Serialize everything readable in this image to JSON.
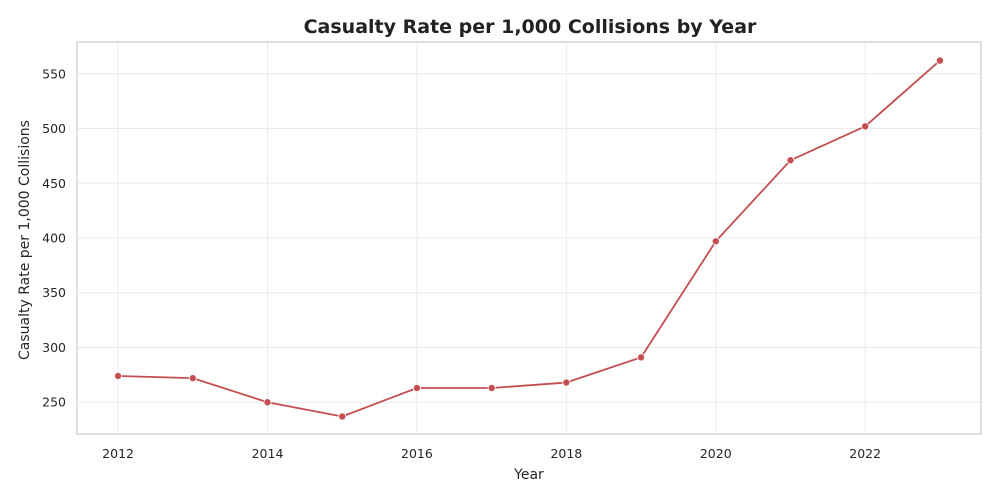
{
  "chart_data": {
    "type": "line",
    "title": "Casualty Rate per 1,000 Collisions by Year",
    "xlabel": "Year",
    "ylabel": "Casualty Rate per 1,000 Collisions",
    "x": [
      2012,
      2013,
      2014,
      2015,
      2016,
      2017,
      2018,
      2019,
      2020,
      2021,
      2022,
      2023
    ],
    "series": [
      {
        "values": [
          274,
          272,
          250,
          237,
          263,
          263,
          268,
          291,
          397,
          471,
          502,
          562
        ],
        "color": "#c44e52"
      }
    ],
    "xlim": [
      2011.45,
      2023.55
    ],
    "ylim": [
      221,
      579
    ],
    "xticks": [
      2012,
      2014,
      2016,
      2018,
      2020,
      2022
    ],
    "yticks": [
      250,
      300,
      350,
      400,
      450,
      500,
      550
    ],
    "grid": true,
    "marker": "circle"
  }
}
